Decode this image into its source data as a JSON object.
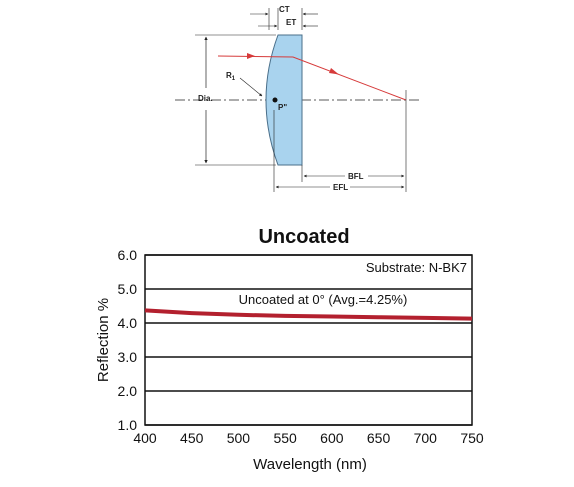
{
  "diagram": {
    "labels": {
      "ct": "CT",
      "et": "ET",
      "r1": "R",
      "r1_sub": "1",
      "dia": "Dia.",
      "p": "P\"",
      "bfl": "BFL",
      "efl": "EFL"
    },
    "colors": {
      "lens_fill": "#a9d3ee",
      "lens_stroke": "#4a6f8a",
      "ray": "#d63a3a"
    }
  },
  "chart_data": {
    "type": "line",
    "title": "Uncoated",
    "xlabel": "Wavelength (nm)",
    "ylabel": "Reflection %",
    "xlim": [
      400,
      750
    ],
    "ylim": [
      1.0,
      6.0
    ],
    "xticks": [
      "400",
      "450",
      "500",
      "550",
      "600",
      "650",
      "700",
      "750"
    ],
    "yticks": [
      "1.0",
      "2.0",
      "3.0",
      "4.0",
      "5.0",
      "6.0"
    ],
    "grid": "horizontal",
    "annotations": {
      "substrate": "Substrate: N-BK7",
      "series_label": "Uncoated at 0° (Avg.=4.25%)"
    },
    "series": [
      {
        "color": "#b3202e",
        "x": [
          400,
          450,
          500,
          550,
          600,
          650,
          700,
          750
        ],
        "y": [
          4.37,
          4.29,
          4.24,
          4.21,
          4.19,
          4.17,
          4.15,
          4.13
        ]
      }
    ]
  }
}
